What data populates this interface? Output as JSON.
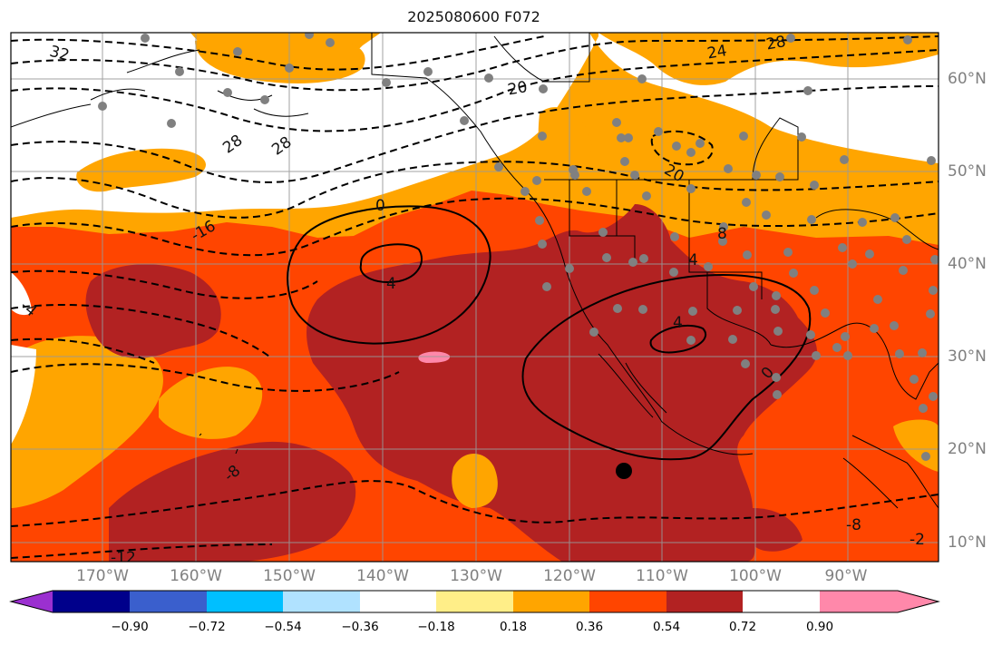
{
  "title": "2025080600 F072",
  "lon_labels": [
    "170°W",
    "160°W",
    "150°W",
    "140°W",
    "130°W",
    "120°W",
    "110°W",
    "100°W",
    "90°W"
  ],
  "lat_labels": [
    "60°N",
    "50°N",
    "40°N",
    "30°N",
    "20°N",
    "10°N"
  ],
  "contour_labels": [
    "32",
    "28",
    "24",
    "28",
    "20",
    "28",
    "20",
    "-16",
    "0",
    "4",
    "8",
    "4",
    "4",
    "0",
    "-8",
    "-12",
    "-8",
    "-4",
    "-2"
  ],
  "colorbar": {
    "ticks": [
      "−0.90",
      "−0.72",
      "−0.54",
      "−0.36",
      "−0.18",
      "0.18",
      "0.36",
      "0.54",
      "0.72",
      "0.90"
    ],
    "colors": [
      "#9b30d0",
      "#00008b",
      "#3a5fcd",
      "#00bfff",
      "#b0e2ff",
      "#ffffff",
      "#ffee88",
      "#ffa500",
      "#ff4500",
      "#b22222",
      "#ff88aa"
    ]
  },
  "colors": {
    "white_field": "#ffffff",
    "light_orange": "#ffa500",
    "orange_red": "#ff4500",
    "dark_red": "#b22222",
    "pink": "#ff88aa",
    "grid": "#999999",
    "stations": "#808080"
  }
}
